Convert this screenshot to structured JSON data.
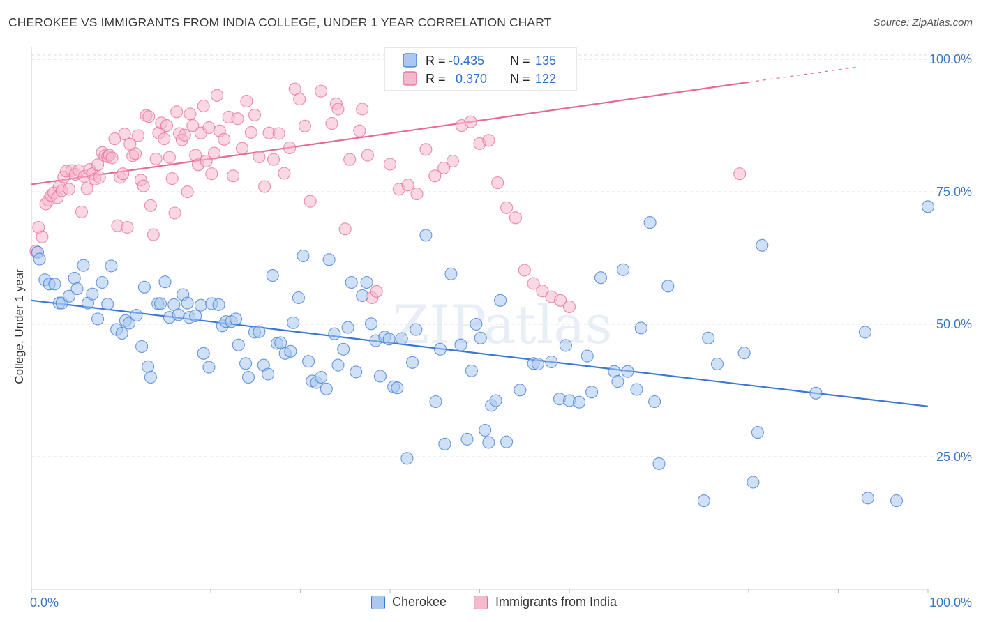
{
  "title": "CHEROKEE VS IMMIGRANTS FROM INDIA COLLEGE, UNDER 1 YEAR CORRELATION CHART",
  "source": "Source: ZipAtlas.com",
  "watermark": "ZIPatlas",
  "colors": {
    "blue": "#3a78d4",
    "blue_fill": "#aac8f0",
    "pink": "#e86a94",
    "pink_fill": "#f6b8cc",
    "axis_text": "#3b77c4",
    "grid": "#dddddd"
  },
  "legend": {
    "row1": {
      "r_label": "R =",
      "r_value": "-0.435",
      "n_label": "N =",
      "n_value": "135"
    },
    "row2": {
      "r_label": "R =",
      "r_value": "0.370",
      "n_label": "N =",
      "n_value": "122"
    }
  },
  "bottom_legend": {
    "series1": "Cherokee",
    "series2": "Immigrants from India"
  },
  "chart_data": {
    "type": "scatter",
    "title": "CHEROKEE VS IMMIGRANTS FROM INDIA COLLEGE, UNDER 1 YEAR CORRELATION CHART",
    "xlabel": "",
    "ylabel": "College, Under 1 year",
    "xlim": [
      0,
      100
    ],
    "ylim": [
      0,
      102
    ],
    "x_tick_labels": [
      "0.0%",
      "100.0%"
    ],
    "y_ticks": [
      25,
      50,
      75,
      100
    ],
    "y_tick_labels": [
      "25.0%",
      "50.0%",
      "75.0%",
      "100.0%"
    ],
    "grid": true,
    "legend_position": "top-center",
    "series": [
      {
        "name": "Cherokee",
        "color": "#3a78d4",
        "r": -0.435,
        "n": 135,
        "trend": {
          "x": [
            0,
            100
          ],
          "y": [
            54.5,
            34.5
          ]
        },
        "points": [
          [
            0.7,
            63.6
          ],
          [
            0.9,
            62.3
          ],
          [
            1.5,
            58.4
          ],
          [
            2.0,
            57.6
          ],
          [
            2.6,
            57.6
          ],
          [
            3.1,
            54.0
          ],
          [
            3.4,
            54.0
          ],
          [
            4.2,
            55.3
          ],
          [
            4.8,
            58.7
          ],
          [
            5.1,
            56.7
          ],
          [
            5.8,
            61.1
          ],
          [
            6.3,
            54.0
          ],
          [
            6.8,
            55.7
          ],
          [
            7.4,
            51.0
          ],
          [
            7.9,
            57.9
          ],
          [
            8.5,
            53.8
          ],
          [
            8.9,
            61.0
          ],
          [
            9.5,
            49.0
          ],
          [
            10.1,
            48.3
          ],
          [
            10.5,
            50.7
          ],
          [
            10.9,
            50.2
          ],
          [
            11.7,
            51.7
          ],
          [
            12.3,
            45.8
          ],
          [
            12.6,
            57.0
          ],
          [
            13.0,
            42.0
          ],
          [
            13.3,
            40.0
          ],
          [
            14.1,
            53.9
          ],
          [
            14.4,
            53.9
          ],
          [
            14.9,
            58.0
          ],
          [
            15.4,
            51.3
          ],
          [
            15.9,
            53.7
          ],
          [
            16.4,
            51.8
          ],
          [
            16.9,
            55.6
          ],
          [
            17.4,
            54.0
          ],
          [
            17.6,
            51.3
          ],
          [
            18.3,
            51.6
          ],
          [
            18.9,
            53.6
          ],
          [
            19.2,
            44.5
          ],
          [
            19.8,
            41.9
          ],
          [
            20.1,
            53.9
          ],
          [
            20.9,
            53.7
          ],
          [
            21.3,
            49.7
          ],
          [
            21.7,
            50.5
          ],
          [
            22.3,
            50.5
          ],
          [
            22.8,
            51.0
          ],
          [
            23.1,
            46.1
          ],
          [
            23.9,
            42.6
          ],
          [
            24.2,
            40.0
          ],
          [
            24.9,
            48.5
          ],
          [
            25.4,
            48.6
          ],
          [
            25.9,
            42.3
          ],
          [
            26.4,
            40.6
          ],
          [
            26.9,
            59.2
          ],
          [
            27.4,
            46.4
          ],
          [
            27.8,
            46.5
          ],
          [
            28.3,
            44.5
          ],
          [
            28.9,
            44.9
          ],
          [
            29.2,
            50.3
          ],
          [
            29.8,
            55.0
          ],
          [
            30.3,
            62.9
          ],
          [
            30.9,
            43.0
          ],
          [
            31.3,
            39.3
          ],
          [
            31.8,
            39.0
          ],
          [
            32.3,
            40.0
          ],
          [
            32.9,
            37.8
          ],
          [
            33.2,
            62.2
          ],
          [
            33.8,
            48.2
          ],
          [
            34.2,
            42.3
          ],
          [
            34.8,
            45.3
          ],
          [
            35.3,
            49.4
          ],
          [
            35.7,
            57.9
          ],
          [
            36.2,
            41.0
          ],
          [
            36.9,
            55.4
          ],
          [
            37.4,
            57.9
          ],
          [
            37.9,
            50.1
          ],
          [
            38.4,
            46.9
          ],
          [
            38.9,
            40.2
          ],
          [
            39.4,
            47.6
          ],
          [
            39.9,
            47.2
          ],
          [
            40.4,
            38.2
          ],
          [
            40.8,
            38.0
          ],
          [
            41.3,
            47.3
          ],
          [
            41.9,
            24.7
          ],
          [
            42.5,
            42.8
          ],
          [
            42.9,
            49.0
          ],
          [
            44.0,
            66.8
          ],
          [
            45.1,
            35.4
          ],
          [
            45.6,
            45.3
          ],
          [
            46.1,
            27.4
          ],
          [
            46.8,
            59.5
          ],
          [
            47.9,
            46.1
          ],
          [
            48.6,
            28.3
          ],
          [
            49.1,
            41.2
          ],
          [
            49.6,
            50.0
          ],
          [
            50.1,
            47.4
          ],
          [
            50.6,
            30.0
          ],
          [
            51.0,
            27.7
          ],
          [
            51.3,
            34.7
          ],
          [
            51.8,
            35.6
          ],
          [
            52.3,
            54.5
          ],
          [
            53.0,
            27.8
          ],
          [
            54.5,
            37.6
          ],
          [
            56.0,
            42.6
          ],
          [
            56.5,
            42.5
          ],
          [
            58.0,
            42.9
          ],
          [
            58.9,
            35.9
          ],
          [
            59.6,
            46.0
          ],
          [
            60.0,
            35.6
          ],
          [
            61.1,
            35.3
          ],
          [
            62.0,
            44.0
          ],
          [
            62.5,
            37.2
          ],
          [
            63.5,
            58.8
          ],
          [
            65.0,
            41.1
          ],
          [
            65.4,
            39.2
          ],
          [
            66.0,
            60.3
          ],
          [
            66.5,
            41.1
          ],
          [
            67.5,
            37.7
          ],
          [
            68.0,
            49.3
          ],
          [
            69.0,
            69.2
          ],
          [
            69.5,
            35.4
          ],
          [
            70.0,
            23.7
          ],
          [
            71.0,
            57.2
          ],
          [
            75.0,
            16.7
          ],
          [
            75.5,
            47.4
          ],
          [
            76.5,
            42.5
          ],
          [
            79.5,
            44.6
          ],
          [
            80.5,
            20.2
          ],
          [
            81.0,
            29.6
          ],
          [
            81.5,
            64.9
          ],
          [
            87.5,
            37.0
          ],
          [
            93.0,
            48.5
          ],
          [
            93.3,
            17.2
          ],
          [
            96.5,
            16.7
          ],
          [
            100.0,
            72.2
          ]
        ]
      },
      {
        "name": "Immigrants from India",
        "color": "#e86a94",
        "r": 0.37,
        "n": 122,
        "trend": {
          "x": [
            0,
            100
          ],
          "y": [
            76.4,
            100.5
          ]
        },
        "trend_solid_until_x": 80,
        "points": [
          [
            0.5,
            63.8
          ],
          [
            0.8,
            68.3
          ],
          [
            1.2,
            66.5
          ],
          [
            1.6,
            72.7
          ],
          [
            1.9,
            73.4
          ],
          [
            2.2,
            74.3
          ],
          [
            2.5,
            74.8
          ],
          [
            2.9,
            73.9
          ],
          [
            3.1,
            76.0
          ],
          [
            3.4,
            75.2
          ],
          [
            3.6,
            77.8
          ],
          [
            3.9,
            78.9
          ],
          [
            4.2,
            75.5
          ],
          [
            4.5,
            79.0
          ],
          [
            4.9,
            78.3
          ],
          [
            5.3,
            79.0
          ],
          [
            5.6,
            71.2
          ],
          [
            5.9,
            77.9
          ],
          [
            6.2,
            75.6
          ],
          [
            6.5,
            79.2
          ],
          [
            6.8,
            78.4
          ],
          [
            7.1,
            77.4
          ],
          [
            7.4,
            80.1
          ],
          [
            7.6,
            77.7
          ],
          [
            7.9,
            82.4
          ],
          [
            8.2,
            81.8
          ],
          [
            8.5,
            81.6
          ],
          [
            8.7,
            81.9
          ],
          [
            9.0,
            81.4
          ],
          [
            9.3,
            85.0
          ],
          [
            9.6,
            68.6
          ],
          [
            9.9,
            77.7
          ],
          [
            10.2,
            78.4
          ],
          [
            10.4,
            85.9
          ],
          [
            10.7,
            68.3
          ],
          [
            11.0,
            84.0
          ],
          [
            11.3,
            81.8
          ],
          [
            11.6,
            82.2
          ],
          [
            11.9,
            85.6
          ],
          [
            12.2,
            77.2
          ],
          [
            12.5,
            76.1
          ],
          [
            12.8,
            89.4
          ],
          [
            13.1,
            89.2
          ],
          [
            13.3,
            72.4
          ],
          [
            13.6,
            66.9
          ],
          [
            13.9,
            81.2
          ],
          [
            14.2,
            86.1
          ],
          [
            14.5,
            88.0
          ],
          [
            14.8,
            85.0
          ],
          [
            15.1,
            87.5
          ],
          [
            15.4,
            81.5
          ],
          [
            15.7,
            77.5
          ],
          [
            16.0,
            71.0
          ],
          [
            16.2,
            90.1
          ],
          [
            16.5,
            86.0
          ],
          [
            16.8,
            84.8
          ],
          [
            17.1,
            85.7
          ],
          [
            17.4,
            75.0
          ],
          [
            17.7,
            89.7
          ],
          [
            18.0,
            87.5
          ],
          [
            18.3,
            81.9
          ],
          [
            18.6,
            80.1
          ],
          [
            18.9,
            86.1
          ],
          [
            19.2,
            91.2
          ],
          [
            19.5,
            80.8
          ],
          [
            19.8,
            87.1
          ],
          [
            20.1,
            78.4
          ],
          [
            20.4,
            82.3
          ],
          [
            20.7,
            93.2
          ],
          [
            21.0,
            86.5
          ],
          [
            21.5,
            84.9
          ],
          [
            22.0,
            89.1
          ],
          [
            22.5,
            78.0
          ],
          [
            23.0,
            88.8
          ],
          [
            23.5,
            83.2
          ],
          [
            24.0,
            92.1
          ],
          [
            24.5,
            86.2
          ],
          [
            24.9,
            89.5
          ],
          [
            25.4,
            81.6
          ],
          [
            26.0,
            76.0
          ],
          [
            26.5,
            86.1
          ],
          [
            27.0,
            81.1
          ],
          [
            27.6,
            86.0
          ],
          [
            28.2,
            78.5
          ],
          [
            28.8,
            83.3
          ],
          [
            29.4,
            94.4
          ],
          [
            29.9,
            92.5
          ],
          [
            30.5,
            87.4
          ],
          [
            31.1,
            73.2
          ],
          [
            32.3,
            94.0
          ],
          [
            33.5,
            87.9
          ],
          [
            34.0,
            91.6
          ],
          [
            34.2,
            90.6
          ],
          [
            35.0,
            68.0
          ],
          [
            35.5,
            81.1
          ],
          [
            36.6,
            86.5
          ],
          [
            36.9,
            90.6
          ],
          [
            37.5,
            81.9
          ],
          [
            38.0,
            55.0
          ],
          [
            38.5,
            56.2
          ],
          [
            40.0,
            80.2
          ],
          [
            41.0,
            75.5
          ],
          [
            42.0,
            76.3
          ],
          [
            43.0,
            74.6
          ],
          [
            44.0,
            83.0
          ],
          [
            45.0,
            78.0
          ],
          [
            46.0,
            79.5
          ],
          [
            47.0,
            80.8
          ],
          [
            48.0,
            87.5
          ],
          [
            49.0,
            88.2
          ],
          [
            50.0,
            84.1
          ],
          [
            51.0,
            84.7
          ],
          [
            52.0,
            76.7
          ],
          [
            53.0,
            72.0
          ],
          [
            54.0,
            70.1
          ],
          [
            55.0,
            60.2
          ],
          [
            56.0,
            57.7
          ],
          [
            57.0,
            56.3
          ],
          [
            58.0,
            55.2
          ],
          [
            59.0,
            54.5
          ],
          [
            60.0,
            53.3
          ],
          [
            79.0,
            78.4
          ]
        ]
      }
    ]
  }
}
